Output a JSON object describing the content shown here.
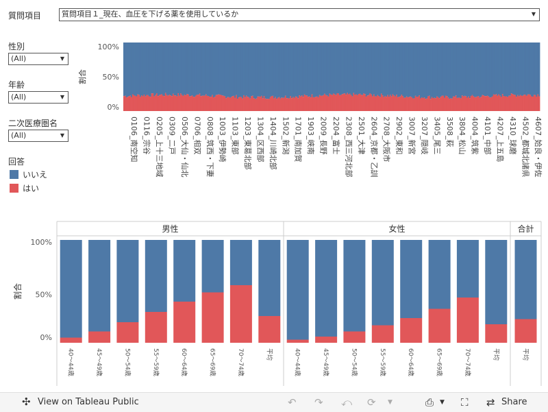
{
  "colors": {
    "no": "#4e79a7",
    "yes": "#e15759",
    "border": "#cccccc"
  },
  "question": {
    "label": "質問項目",
    "value": "質問項目１_現在、血圧を下げる薬を使用しているか"
  },
  "filters": [
    {
      "label": "性別",
      "value": "(All)"
    },
    {
      "label": "年齢",
      "value": "(All)"
    },
    {
      "label": "二次医療圏名",
      "value": "(All)"
    }
  ],
  "legend": {
    "title": "回答",
    "items": [
      {
        "label": "いいえ",
        "color": "#4e79a7"
      },
      {
        "label": "はい",
        "color": "#e15759"
      }
    ]
  },
  "chart_data": [
    {
      "type": "bar",
      "stacked": true,
      "ylabel": "割合",
      "yticks": [
        "100%",
        "50%",
        "0%"
      ],
      "ylim": [
        0,
        100
      ],
      "series": [
        {
          "name": "はい"
        },
        {
          "name": "いいえ"
        }
      ],
      "bar_count": 330,
      "yes_share_range": [
        15,
        27
      ],
      "categories": [
        "0106_南空知",
        "0116_宗谷",
        "0205_上十三地域",
        "0309_二戸",
        "0506_大仙・仙北",
        "0706_相双",
        "0808_筑西・下妻",
        "1003_伊勢崎",
        "1103_東部",
        "1203_東葛北部",
        "1304_区西部",
        "1404_川崎北部",
        "1502_新潟",
        "1701_南加賀",
        "1903_峡南",
        "2009_長野",
        "2204_富士",
        "2308_西三河北部",
        "2501_大津",
        "2604_京都・乙訓",
        "2708_大阪市",
        "2902_東和",
        "3007_新宮",
        "3207_隠岐",
        "3405_尾三",
        "3508_萩",
        "3804_松山",
        "4004_筑紫",
        "4101_中部",
        "4207_上五島",
        "4310_球磨",
        "4502_都城北諸県",
        "4607_姶良・伊佐"
      ]
    },
    {
      "type": "bar",
      "stacked": true,
      "ylabel": "割合",
      "yticks": [
        "100%",
        "50%",
        "0%"
      ],
      "ylim": [
        0,
        100
      ],
      "panels": [
        {
          "title": "男性",
          "categories": [
            "40～44歳",
            "45～49歳",
            "50～54歳",
            "55～59歳",
            "60～64歳",
            "65～69歳",
            "70～74歳",
            "平均"
          ],
          "yes": [
            5,
            11,
            20,
            30,
            40,
            49,
            56,
            26
          ]
        },
        {
          "title": "女性",
          "categories": [
            "40～44歳",
            "45～49歳",
            "50～54歳",
            "55～59歳",
            "60～64歳",
            "65～69歳",
            "70～74歳",
            "平均"
          ],
          "yes": [
            3,
            6,
            11,
            17,
            24,
            33,
            44,
            18
          ]
        },
        {
          "title": "合計",
          "categories": [
            "平均"
          ],
          "yes": [
            23
          ]
        }
      ]
    }
  ],
  "toolbar": {
    "view_label": "View on Tableau Public",
    "share_label": "Share"
  }
}
